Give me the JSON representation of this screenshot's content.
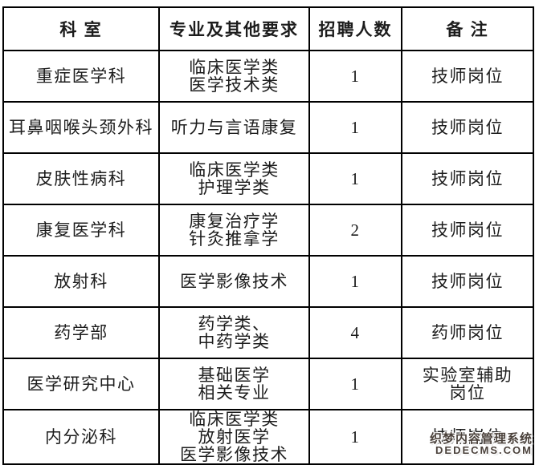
{
  "table": {
    "headers": [
      "科 室",
      "专业及其他要求",
      "招聘人数",
      "备 注"
    ],
    "rows": [
      {
        "dept": "重症医学科",
        "major": [
          "临床医学类",
          "医学技术类"
        ],
        "count": "1",
        "note": [
          "技师岗位"
        ]
      },
      {
        "dept": "耳鼻咽喉头颈外科",
        "major": [
          "听力与言语康复"
        ],
        "count": "1",
        "note": [
          "技师岗位"
        ]
      },
      {
        "dept": "皮肤性病科",
        "major": [
          "临床医学类",
          "护理学类"
        ],
        "count": "1",
        "note": [
          "技师岗位"
        ]
      },
      {
        "dept": "康复医学科",
        "major": [
          "康复治疗学",
          "针灸推拿学"
        ],
        "count": "2",
        "note": [
          "技师岗位"
        ]
      },
      {
        "dept": "放射科",
        "major": [
          "医学影像技术"
        ],
        "count": "1",
        "note": [
          "技师岗位"
        ]
      },
      {
        "dept": "药学部",
        "major": [
          "药学类、",
          "中药学类"
        ],
        "count": "4",
        "note": [
          "药师岗位"
        ]
      },
      {
        "dept": "医学研究中心",
        "major": [
          "基础医学",
          "相关专业"
        ],
        "count": "1",
        "note": [
          "实验室辅助",
          "岗位"
        ]
      },
      {
        "dept": "内分泌科",
        "major": [
          "临床医学类",
          "放射医学",
          "医学影像技术"
        ],
        "count": "1",
        "note": [
          "技师岗位"
        ]
      }
    ]
  },
  "watermark": {
    "line1": "织梦内容管理系统",
    "line2": "DEDECMS.COM",
    "color": "#4a413b"
  },
  "colors": {
    "table_border": "#000000",
    "text": "#1c1c1c",
    "background": "#ffffff"
  }
}
